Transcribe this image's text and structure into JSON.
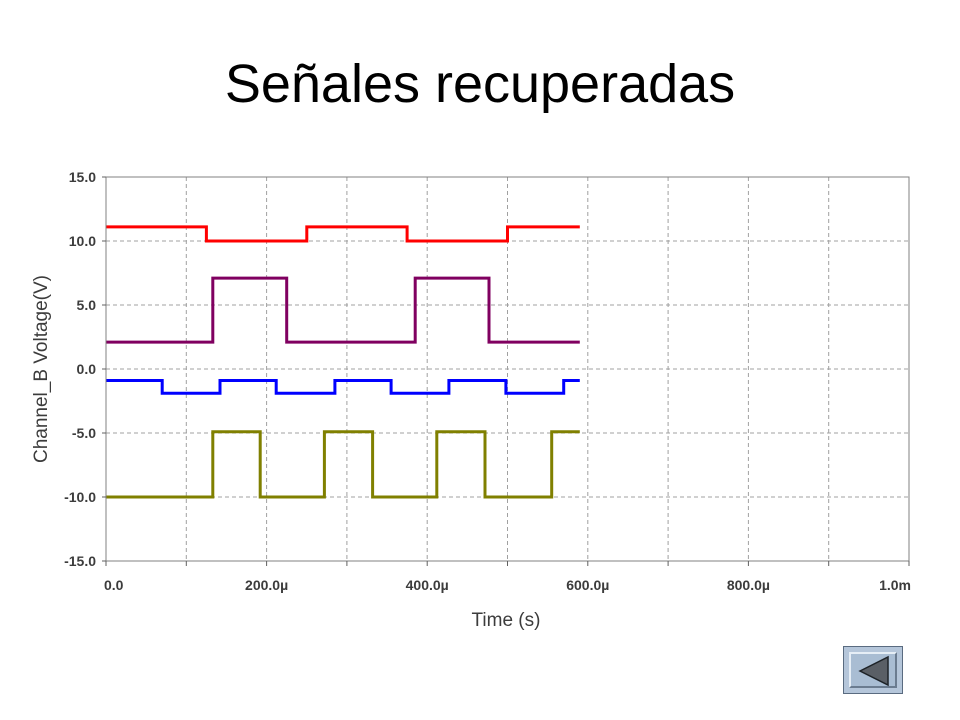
{
  "slide": {
    "title": "Señales recuperadas",
    "back_icon": "triangle-left-back-icon"
  },
  "chart_data": {
    "type": "line",
    "xlabel": "Time (s)",
    "ylabel": "Channel_B Voltage(V)",
    "xlim": [
      0,
      1000
    ],
    "ylim": [
      -15,
      15
    ],
    "grid": true,
    "x_ticks": [
      {
        "value": 0,
        "label": "0.0"
      },
      {
        "value": 200,
        "label": "200.0µ"
      },
      {
        "value": 400,
        "label": "400.0µ"
      },
      {
        "value": 600,
        "label": "600.0µ"
      },
      {
        "value": 800,
        "label": "800.0µ"
      },
      {
        "value": 1000,
        "label": "1.0m"
      }
    ],
    "x_minor_ticks": [
      100,
      300,
      500,
      700,
      900
    ],
    "y_ticks": [
      {
        "value": 15,
        "label": "15.0"
      },
      {
        "value": 10,
        "label": "10.0"
      },
      {
        "value": 5,
        "label": "5.0"
      },
      {
        "value": 0,
        "label": "0.0"
      },
      {
        "value": -5,
        "label": "-5.0"
      },
      {
        "value": -10,
        "label": "-10.0"
      },
      {
        "value": -15,
        "label": "-15.0"
      }
    ],
    "series": [
      {
        "color": "#ff0000",
        "x": [
          0,
          125,
          125,
          250,
          250,
          375,
          375,
          500,
          500,
          590
        ],
        "y": [
          11.1,
          11.1,
          10.0,
          10.0,
          11.1,
          11.1,
          10.0,
          10.0,
          11.1,
          11.1
        ]
      },
      {
        "color": "#800060",
        "x": [
          0,
          133,
          133,
          225,
          225,
          385,
          385,
          477,
          477,
          590
        ],
        "y": [
          2.1,
          2.1,
          7.1,
          7.1,
          2.1,
          2.1,
          7.1,
          7.1,
          2.1,
          2.1
        ]
      },
      {
        "color": "#0000ff",
        "x": [
          0,
          70,
          70,
          142,
          142,
          212,
          212,
          285,
          285,
          355,
          355,
          427,
          427,
          498,
          498,
          570,
          570,
          590
        ],
        "y": [
          -0.9,
          -0.9,
          -1.9,
          -1.9,
          -0.9,
          -0.9,
          -1.9,
          -1.9,
          -0.9,
          -0.9,
          -1.9,
          -1.9,
          -0.9,
          -0.9,
          -1.9,
          -1.9,
          -0.9,
          -0.9
        ]
      },
      {
        "color": "#808000",
        "x": [
          0,
          133,
          133,
          192,
          192,
          272,
          272,
          332,
          332,
          412,
          412,
          472,
          472,
          555,
          555,
          590
        ],
        "y": [
          -10.0,
          -10.0,
          -4.9,
          -4.9,
          -10.0,
          -10.0,
          -4.9,
          -4.9,
          -10.0,
          -10.0,
          -4.9,
          -4.9,
          -10.0,
          -10.0,
          -4.9,
          -4.9
        ]
      }
    ]
  }
}
